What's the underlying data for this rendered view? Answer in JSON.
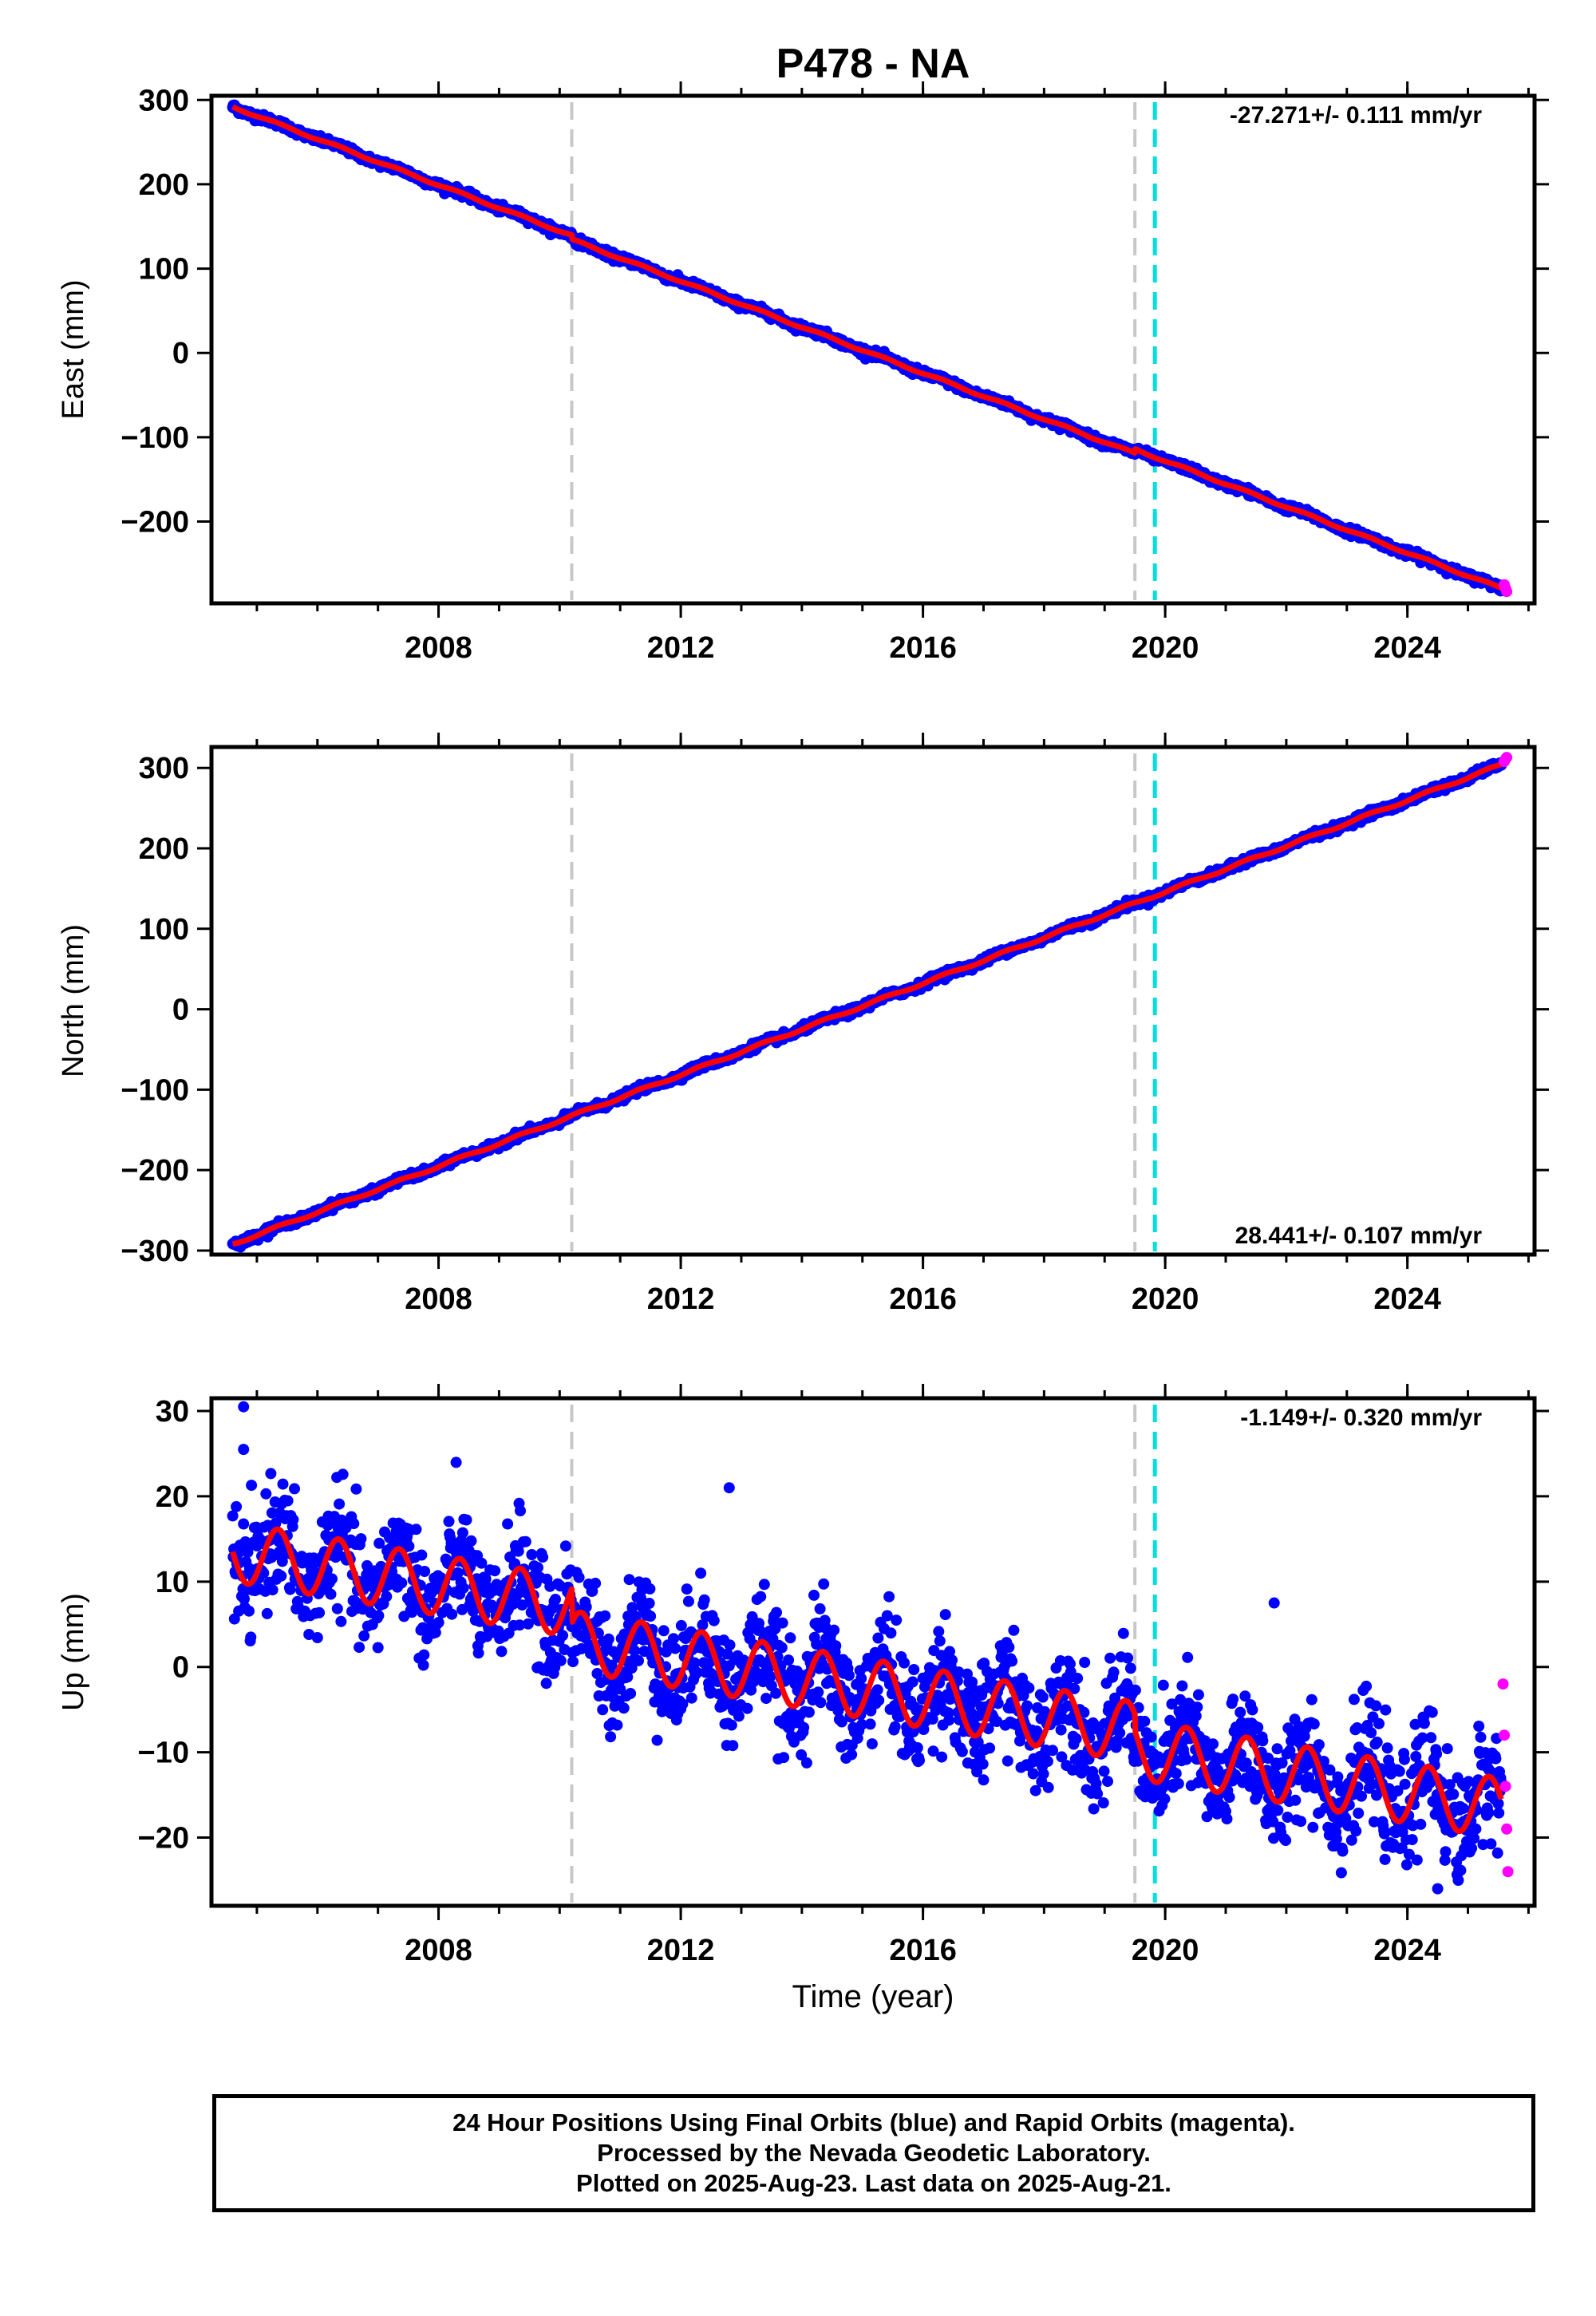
{
  "title": "P478 - NA",
  "xlabel": "Time (year)",
  "caption": {
    "line1": "24 Hour Positions Using Final Orbits (blue) and Rapid Orbits (magenta).",
    "line2": "Processed by the Nevada Geodetic Laboratory.",
    "line3": "Plotted on 2025-Aug-23. Last data on 2025-Aug-21."
  },
  "colors": {
    "final_orbits": "#0000ff",
    "rapid_orbits": "#ff00ff",
    "model": "#ff0000",
    "event_gray": "#c8c8c8",
    "event_cyan": "#00e0e0"
  },
  "chart_data": [
    {
      "type": "scatter",
      "panel": "east",
      "ylabel": "East (mm)",
      "xlim": [
        2004.25,
        2026.1
      ],
      "ylim": [
        -297,
        305
      ],
      "yticks": [
        -200,
        -100,
        0,
        100,
        200,
        300
      ],
      "xticks": [
        2008,
        2012,
        2016,
        2020,
        2024
      ],
      "grid": false,
      "rate_label": "-27.271+/- 0.111 mm/yr",
      "rate_label_position": "top-right",
      "event_lines": [
        {
          "x": 2010.2,
          "color": "gray"
        },
        {
          "x": 2019.5,
          "color": "gray"
        },
        {
          "x": 2019.83,
          "color": "cyan"
        }
      ],
      "trend": {
        "start_x": 2004.6,
        "start_y": 292,
        "slope": -27.271
      },
      "offsets": [
        {
          "x": 2010.2,
          "value": -5
        },
        {
          "x": 2019.5,
          "value": 5
        }
      ],
      "seasonal_amplitude": 1.2,
      "scatter_noise": 2.2,
      "series": [
        {
          "name": "Final Orbits",
          "x": [
            2004.6,
            2008.0,
            2010.2,
            2012.0,
            2016.0,
            2019.5,
            2020.0,
            2024.0,
            2025.55
          ],
          "y": [
            292,
            199,
            134,
            94,
            -16,
            -122,
            -124,
            -234,
            -277
          ]
        },
        {
          "name": "Rapid Orbits",
          "x": [
            2025.6,
            2025.62,
            2025.64
          ],
          "y": [
            -275,
            -279,
            -283
          ]
        }
      ]
    },
    {
      "type": "scatter",
      "panel": "north",
      "ylabel": "North (mm)",
      "xlim": [
        2004.25,
        2026.1
      ],
      "ylim": [
        -305,
        326
      ],
      "yticks": [
        -300,
        -200,
        -100,
        0,
        100,
        200,
        300
      ],
      "xticks": [
        2008,
        2012,
        2016,
        2020,
        2024
      ],
      "grid": false,
      "rate_label": "28.441+/- 0.107 mm/yr",
      "rate_label_position": "bottom-right",
      "event_lines": [
        {
          "x": 2010.2,
          "color": "gray"
        },
        {
          "x": 2019.5,
          "color": "gray"
        },
        {
          "x": 2019.83,
          "color": "cyan"
        }
      ],
      "trend": {
        "start_x": 2004.6,
        "start_y": -292,
        "slope": 28.441
      },
      "offsets": [],
      "seasonal_amplitude": 1.5,
      "scatter_noise": 2.2,
      "series": [
        {
          "name": "Final Orbits",
          "x": [
            2004.6,
            2008.0,
            2012.0,
            2016.0,
            2019.5,
            2020.0,
            2024.0,
            2025.55
          ],
          "y": [
            -292,
            -200,
            -88,
            22,
            133,
            143,
            250,
            305
          ]
        },
        {
          "name": "Rapid Orbits",
          "x": [
            2025.6,
            2025.62,
            2025.64
          ],
          "y": [
            308,
            311,
            313
          ]
        }
      ]
    },
    {
      "type": "scatter",
      "panel": "up",
      "ylabel": "Up (mm)",
      "xlim": [
        2004.25,
        2026.1
      ],
      "ylim": [
        -28,
        31.5
      ],
      "yticks": [
        -20,
        -10,
        0,
        10,
        20,
        30
      ],
      "xticks": [
        2008,
        2012,
        2016,
        2020,
        2024
      ],
      "grid": false,
      "rate_label": "-1.149+/- 0.320 mm/yr",
      "rate_label_position": "top-right",
      "event_lines": [
        {
          "x": 2010.2,
          "color": "gray"
        },
        {
          "x": 2019.5,
          "color": "gray"
        },
        {
          "x": 2019.83,
          "color": "cyan"
        }
      ],
      "trend": {
        "start_x": 2004.6,
        "start_y": 13.5,
        "slope": -1.149
      },
      "offsets": [
        {
          "x": 2010.2,
          "value": -4
        },
        {
          "x": 2019.5,
          "value": -2
        }
      ],
      "seasonal_amplitude": 3.5,
      "scatter_noise": 3.2,
      "series": [
        {
          "name": "Final Orbits",
          "x": [
            2004.6,
            2006.0,
            2008.0,
            2010.0,
            2010.3,
            2012.0,
            2016.0,
            2019.5,
            2020.0,
            2024.0,
            2025.55
          ],
          "y": [
            14,
            12,
            8,
            6,
            1,
            2,
            -1,
            -6,
            -8,
            -12,
            -15
          ]
        },
        {
          "name": "Rapid Orbits",
          "x": [
            2025.58,
            2025.6,
            2025.62,
            2025.64,
            2025.66
          ],
          "y": [
            -2,
            -8,
            -14,
            -19,
            -24
          ]
        }
      ]
    }
  ]
}
